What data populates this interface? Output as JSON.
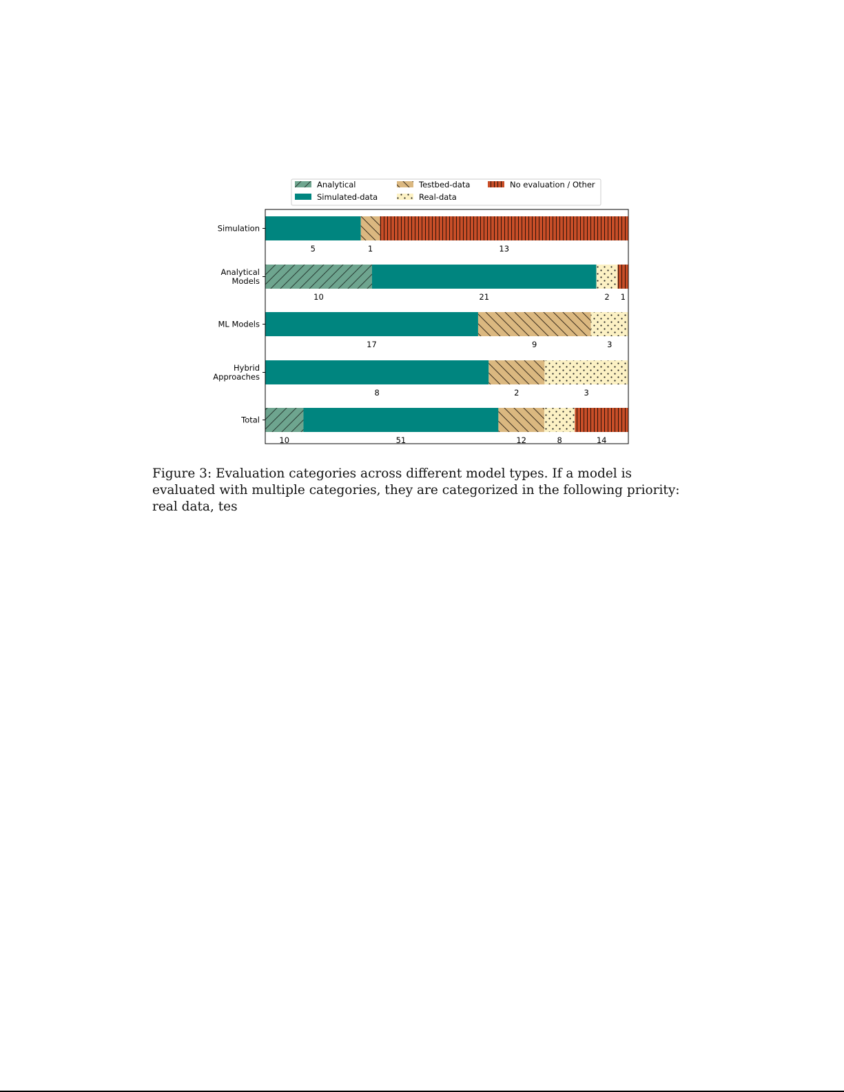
{
  "chart_data": {
    "type": "bar",
    "orientation": "horizontal",
    "stacked": true,
    "normalized": true,
    "categories": [
      "Simulation",
      "Analytical Models",
      "ML Models",
      "Hybrid Approaches",
      "Total"
    ],
    "category_lines": [
      [
        "Simulation"
      ],
      [
        "Analytical",
        "Models"
      ],
      [
        "ML Models"
      ],
      [
        "Hybrid",
        "Approaches"
      ],
      [
        "Total"
      ]
    ],
    "series": [
      {
        "name": "Analytical",
        "values": [
          0,
          10,
          0,
          0,
          10
        ],
        "color": "#6ea58f",
        "pattern": "forward-diagonal"
      },
      {
        "name": "Simulated-data",
        "values": [
          5,
          21,
          17,
          8,
          51
        ],
        "color": "#00857f",
        "pattern": "solid"
      },
      {
        "name": "Testbed-data",
        "values": [
          1,
          0,
          9,
          2,
          12
        ],
        "color": "#dbb880",
        "pattern": "back-diagonal"
      },
      {
        "name": "Real-data",
        "values": [
          0,
          2,
          3,
          3,
          8
        ],
        "color": "#fcf1c4",
        "pattern": "dots"
      },
      {
        "name": "No evaluation / Other",
        "values": [
          13,
          1,
          0,
          0,
          14
        ],
        "color": "#c84e28",
        "pattern": "vertical-lines"
      }
    ],
    "legend_order": [
      0,
      2,
      4,
      1,
      3
    ],
    "legend_position": "top",
    "xaxis": "hidden",
    "grid": false
  },
  "caption": {
    "label": "Figure 3:",
    "text": "Evaluation categories across different model types. If a model is evaluated with multiple categories, they are categorized in the following priority: real data, tes"
  }
}
